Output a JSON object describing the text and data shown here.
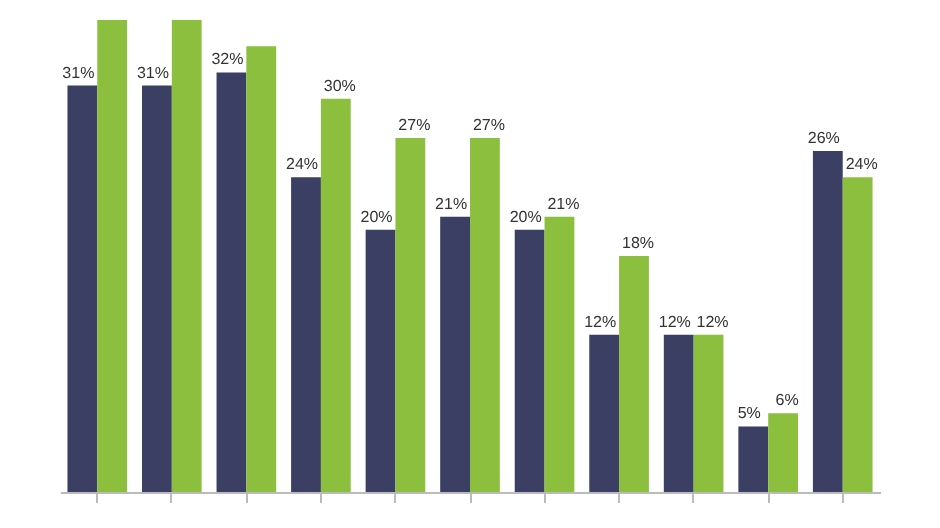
{
  "chart_data": {
    "type": "bar",
    "categories": [
      null,
      null,
      null,
      null,
      null,
      null,
      null,
      null,
      null,
      null,
      null
    ],
    "series": [
      {
        "color": "#3b3f63",
        "values": [
          31,
          31,
          32,
          24,
          20,
          21,
          20,
          12,
          12,
          5,
          26
        ],
        "value_labels": [
          "31%",
          "31%",
          "32%",
          "24%",
          "20%",
          "21%",
          "20%",
          "12%",
          "12%",
          "5%",
          "26%"
        ]
      },
      {
        "color": "#8dbf3f",
        "values": [
          36,
          36,
          34,
          30,
          27,
          27,
          21,
          18,
          12,
          6,
          24
        ],
        "value_labels": [
          null,
          null,
          null,
          "30%",
          "27%",
          "27%",
          "21%",
          "18%",
          "12%",
          "6%",
          "24%"
        ]
      }
    ],
    "grid": false,
    "legend": false,
    "tick_labels": false
  }
}
